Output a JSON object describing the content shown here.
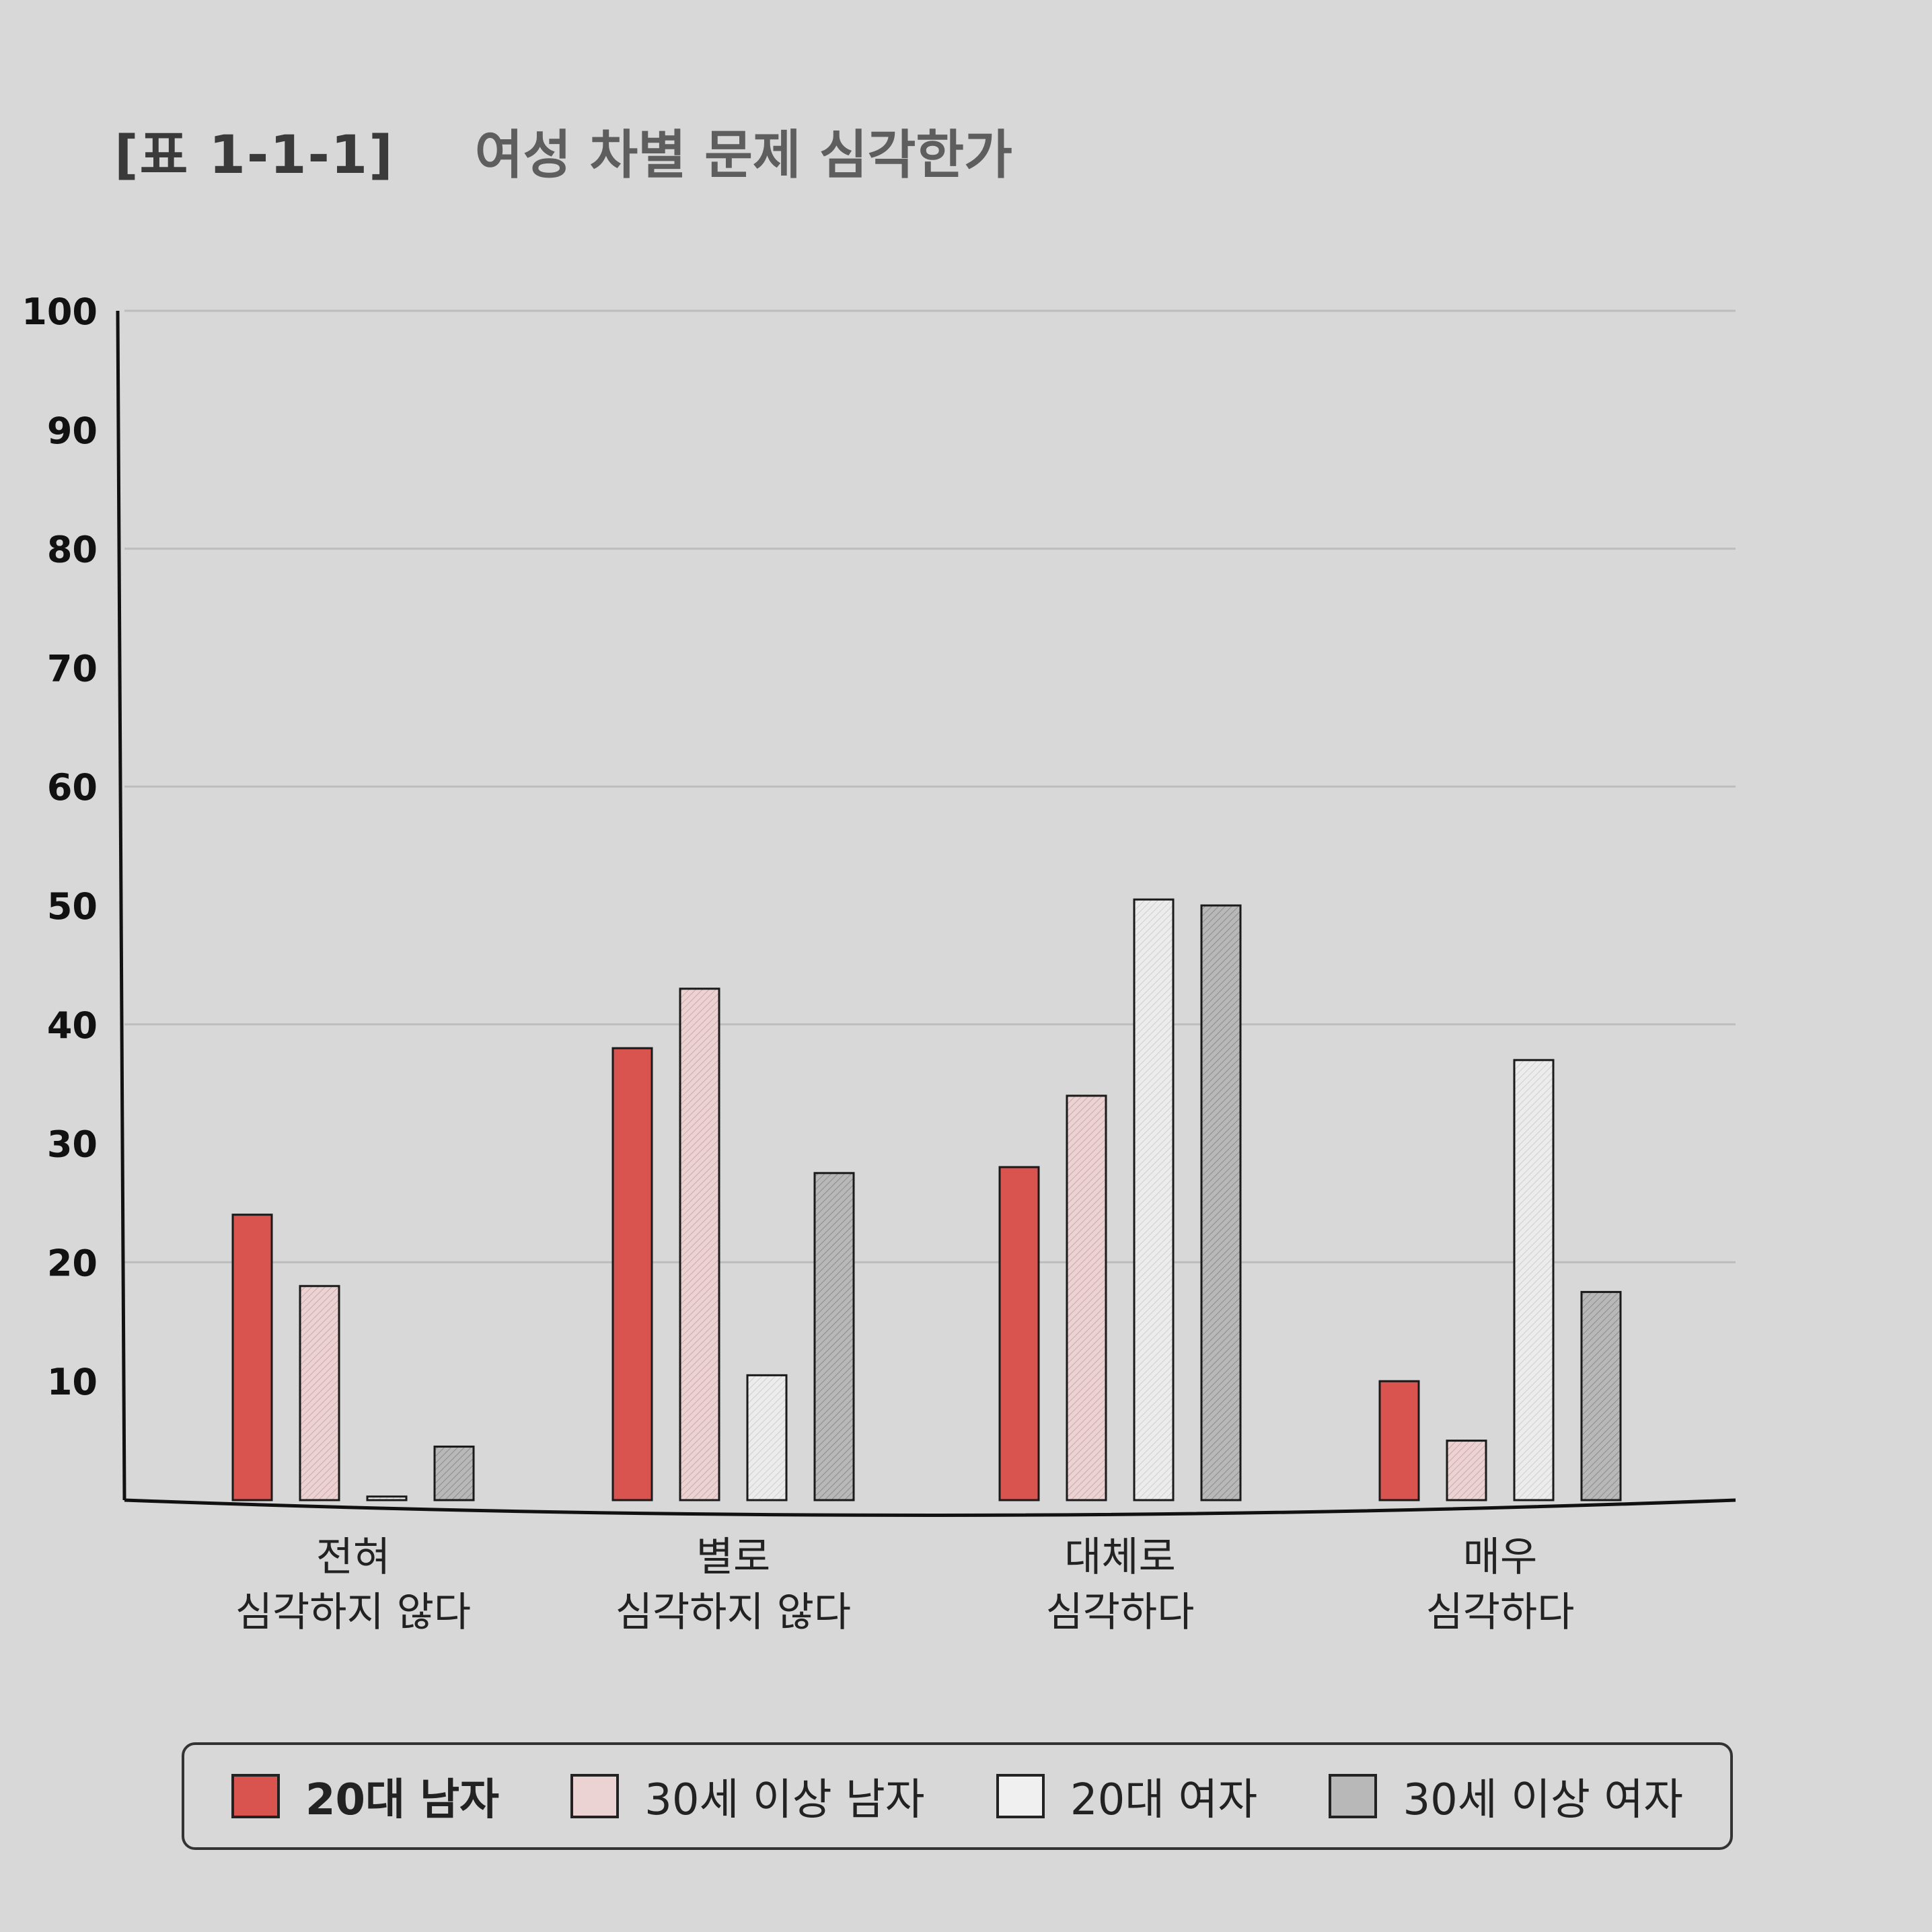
{
  "header": {
    "table_number": "[표 1-1-1]",
    "title": "여성 차별 문제 심각한가"
  },
  "chart_data": {
    "type": "bar",
    "title": "여성 차별 문제 심각한가",
    "xlabel": "",
    "ylabel": "",
    "ylim": [
      0,
      100
    ],
    "yticks": [
      "10",
      "20",
      "30",
      "40",
      "50",
      "60",
      "70",
      "80",
      "90",
      "100"
    ],
    "grid": true,
    "categories": [
      [
        "전혀",
        "심각하지 않다"
      ],
      [
        "별로",
        "심각하지 않다"
      ],
      [
        "대체로",
        "심각하다"
      ],
      [
        "매우",
        "심각하다"
      ]
    ],
    "series": [
      {
        "name": "20대 남자",
        "color": "#d9534f",
        "values": [
          24,
          38,
          28,
          10
        ]
      },
      {
        "name": "30세 이상 남자",
        "color": "#e9cdcd",
        "values": [
          18,
          43,
          34,
          5
        ]
      },
      {
        "name": "20대 여자",
        "color": "#e6e6e6",
        "values": [
          0.3,
          10.5,
          50.5,
          37
        ]
      },
      {
        "name": "30세 이상 여자",
        "color": "#b3b3b3",
        "values": [
          4.5,
          27.5,
          50,
          17.5
        ]
      }
    ],
    "legend_position": "bottom"
  }
}
